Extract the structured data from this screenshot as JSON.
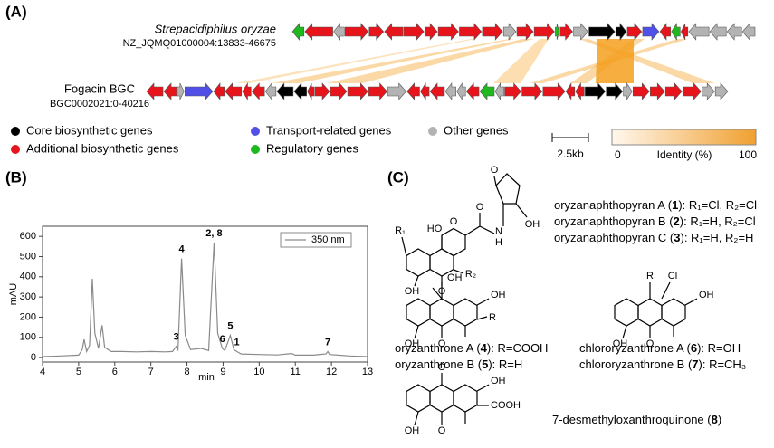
{
  "panel_a": {
    "label": "(A)",
    "organism": "Strepacidiphilus oryzae",
    "accession": "NZ_JQMQ01000004:13833-46675",
    "bgc_name": "Fogacin BGC",
    "bgc_accession": "BGC0002021:0-40216",
    "legend": [
      {
        "label": "Core biosynthetic genes",
        "color": "#000000"
      },
      {
        "label": "Additional biosynthetic genes",
        "color": "#e8141b"
      },
      {
        "label": "Transport-related genes",
        "color": "#5050e8"
      },
      {
        "label": "Regulatory genes",
        "color": "#1fb81f"
      },
      {
        "label": "Other genes",
        "color": "#b3b3b3"
      }
    ],
    "scale_label": "2.5kb",
    "identity_label": "Identity (%)",
    "identity_min": 0,
    "identity_max": 100
  },
  "chart_data": {
    "type": "line",
    "panel_label": "(B)",
    "x_label": "min",
    "y_label": "mAU",
    "x": [
      4.0,
      4.5,
      5.0,
      5.1,
      5.15,
      5.22,
      5.3,
      5.38,
      5.45,
      5.55,
      5.65,
      5.72,
      5.9,
      6.2,
      6.6,
      7.0,
      7.4,
      7.6,
      7.7,
      7.75,
      7.85,
      7.95,
      8.1,
      8.4,
      8.6,
      8.75,
      8.85,
      8.98,
      9.05,
      9.2,
      9.3,
      9.38,
      9.5,
      10.0,
      10.5,
      10.9,
      11.0,
      11.5,
      11.85,
      11.9,
      11.95,
      12.5,
      13.0
    ],
    "series": [
      {
        "name": "350 nm",
        "color": "#8a8a8a",
        "values": [
          5,
          8,
          12,
          40,
          90,
          30,
          60,
          390,
          120,
          45,
          160,
          50,
          30,
          30,
          28,
          30,
          28,
          30,
          55,
          35,
          490,
          110,
          40,
          45,
          35,
          570,
          120,
          45,
          35,
          110,
          40,
          30,
          18,
          15,
          13,
          20,
          12,
          12,
          18,
          30,
          15,
          8,
          5
        ]
      }
    ],
    "annotations": [
      {
        "label": "1",
        "x": 9.38
      },
      {
        "label": "2, 8",
        "x": 8.75
      },
      {
        "label": "3",
        "x": 7.7
      },
      {
        "label": "4",
        "x": 7.85
      },
      {
        "label": "5",
        "x": 9.2
      },
      {
        "label": "6",
        "x": 8.98
      },
      {
        "label": "7",
        "x": 11.9
      }
    ],
    "xlim": [
      4,
      13
    ],
    "ylim": [
      -22,
      650
    ],
    "xticks": [
      4,
      5,
      6,
      7,
      8,
      9,
      10,
      11,
      12,
      13
    ],
    "yticks": [
      0,
      100,
      200,
      300,
      400,
      500,
      600
    ],
    "legend": "upper right"
  },
  "panel_c": {
    "label": "(C)",
    "compounds": [
      [
        "oryzanaphthopyran A (",
        "1",
        "): R₁=Cl, R₂=Cl"
      ],
      [
        "oryzanaphthopyran B (",
        "2",
        "): R₁=H, R₂=Cl"
      ],
      [
        "oryzanaphthopyran C (",
        "3",
        "): R₁=H, R₂=H"
      ],
      [
        "oryzanthrone A (",
        "4",
        "): R=COOH"
      ],
      [
        "oryzanthrone B (",
        "5",
        "): R=H"
      ],
      [
        "chlororyzanthrone A (",
        "6",
        "): R=OH"
      ],
      [
        "chlororyzanthrone B (",
        "7",
        "): R=CH₃"
      ],
      [
        "7-desmethyloxanthroquinone (",
        "8",
        ")"
      ]
    ],
    "structures": [
      {
        "atoms": [
          "O",
          "O",
          "N",
          "H",
          "OH",
          "R₁",
          "HO",
          "O",
          "R₂",
          "O",
          "OH"
        ]
      },
      {
        "atoms": [
          "OH",
          "OH",
          "R",
          "O",
          "OH"
        ]
      },
      {
        "atoms": [
          "R",
          "Cl",
          "OH",
          "O",
          "OH"
        ]
      },
      {
        "atoms": [
          "O",
          "OH",
          "COOH",
          "O",
          "OH"
        ]
      }
    ]
  }
}
